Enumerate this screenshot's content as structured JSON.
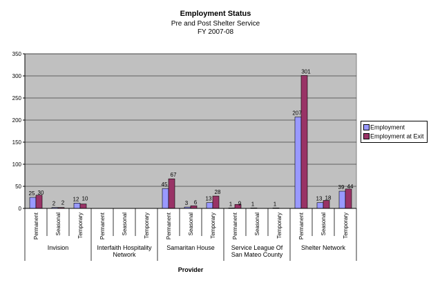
{
  "chart_data": {
    "type": "bar",
    "title": "Employment Status",
    "subtitle": [
      "Pre and Post Shelter Service",
      "FY 2007-08"
    ],
    "xlabel": "Provider",
    "ylabel": "",
    "ylim": [
      0,
      350
    ],
    "yticks": [
      0,
      50,
      100,
      150,
      200,
      250,
      300,
      350
    ],
    "grid": true,
    "legend_position": "right",
    "groups": [
      {
        "name": "Invision",
        "categories": [
          "Permanent",
          "Seasonal",
          "Temporary"
        ]
      },
      {
        "name": "Interfaith Hospitality Network",
        "categories": [
          "Permanent",
          "Seasonal",
          "Temporary"
        ]
      },
      {
        "name": "Samaritan House",
        "categories": [
          "Permanent",
          "Seasonal",
          "Temporary"
        ]
      },
      {
        "name": "Service League Of San Mateo County",
        "categories": [
          "Permanent",
          "Seasonal",
          "Temporary"
        ]
      },
      {
        "name": "Shelter Network",
        "categories": [
          "Permanent",
          "Seasonal",
          "Temporary"
        ]
      }
    ],
    "series": [
      {
        "name": "Employment",
        "color": "#9999ff",
        "values": [
          25,
          2,
          12,
          null,
          null,
          null,
          45,
          3,
          13,
          1,
          1,
          1,
          207,
          13,
          39
        ]
      },
      {
        "name": "Employment at Exit",
        "color": "#993366",
        "values": [
          30,
          2,
          10,
          null,
          null,
          null,
          67,
          6,
          28,
          9,
          null,
          null,
          301,
          18,
          44
        ]
      }
    ]
  },
  "colors": {
    "plot_area": "#c0c0c0",
    "gridline": "#000000"
  }
}
